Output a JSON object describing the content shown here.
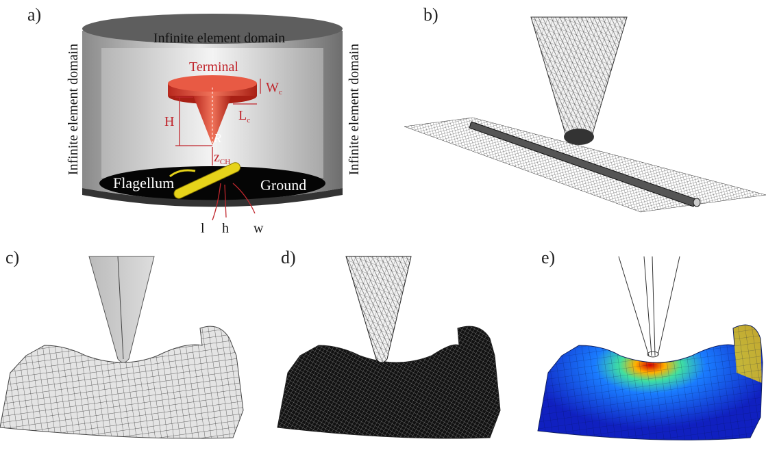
{
  "panels": [
    {
      "label": "a)"
    },
    {
      "label": "b)"
    },
    {
      "label": "c)"
    },
    {
      "label": "d)"
    },
    {
      "label": "e)"
    }
  ],
  "diagram": {
    "domain_top": "Infinite element domain",
    "domain_left": "Infinite element domain",
    "domain_right": "Infinite element domain",
    "terminal": "Terminal",
    "wc": "W",
    "wc_sub": "c",
    "h_dim": "H",
    "lc": "L",
    "lc_sub": "c",
    "radius": "R",
    "zch": "z",
    "zch_sub": "CH",
    "flagellum": "Flagellum",
    "ground": "Ground",
    "axes": [
      "l",
      "h",
      "w"
    ]
  }
}
